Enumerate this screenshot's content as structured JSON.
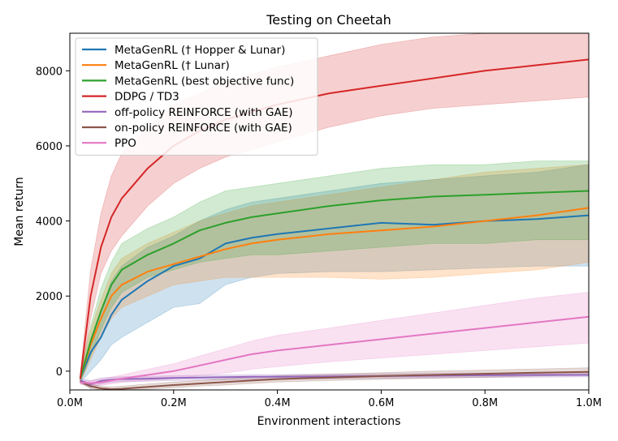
{
  "chart_data": {
    "type": "line",
    "title": "Testing on Cheetah",
    "xlabel": "Environment interactions",
    "ylabel": "Mean return",
    "xlim": [
      0,
      1000000
    ],
    "ylim": [
      -500,
      9000
    ],
    "xticks": [
      0,
      200000,
      400000,
      600000,
      800000,
      1000000
    ],
    "xtick_labels": [
      "0.0M",
      "0.2M",
      "0.4M",
      "0.6M",
      "0.8M",
      "1.0M"
    ],
    "yticks": [
      0,
      2000,
      4000,
      6000,
      8000
    ],
    "ytick_labels": [
      "0",
      "2000",
      "4000",
      "6000",
      "8000"
    ],
    "legend_position": "top-left",
    "x": [
      20000,
      40000,
      60000,
      80000,
      100000,
      150000,
      200000,
      250000,
      300000,
      350000,
      400000,
      500000,
      600000,
      700000,
      800000,
      900000,
      1000000
    ],
    "series": [
      {
        "name": "MetaGenRL († Hopper & Lunar)",
        "color": "#1f77b4",
        "values": [
          -200,
          500,
          900,
          1500,
          1900,
          2400,
          2800,
          3000,
          3400,
          3550,
          3650,
          3800,
          3950,
          3900,
          4000,
          4050,
          4150
        ],
        "lower": [
          -300,
          0,
          300,
          700,
          900,
          1300,
          1700,
          1800,
          2300,
          2500,
          2600,
          2650,
          2650,
          2700,
          2750,
          2800,
          2800
        ],
        "upper": [
          -100,
          800,
          1600,
          2400,
          2800,
          3300,
          3600,
          4000,
          4300,
          4500,
          4600,
          4800,
          5000,
          5100,
          5200,
          5300,
          5500
        ]
      },
      {
        "name": "MetaGenRL († Lunar)",
        "color": "#ff7f0e",
        "values": [
          -200,
          700,
          1400,
          2000,
          2300,
          2650,
          2850,
          3050,
          3250,
          3400,
          3500,
          3650,
          3750,
          3850,
          4000,
          4150,
          4350
        ],
        "lower": [
          -300,
          300,
          900,
          1400,
          1700,
          2000,
          2300,
          2400,
          2500,
          2500,
          2500,
          2500,
          2450,
          2500,
          2600,
          2700,
          2900
        ],
        "upper": [
          -100,
          1100,
          1900,
          2600,
          3000,
          3400,
          3700,
          4000,
          4200,
          4400,
          4500,
          4700,
          4900,
          5100,
          5300,
          5400,
          5500
        ]
      },
      {
        "name": "MetaGenRL (best objective func)",
        "color": "#2ca02c",
        "values": [
          -200,
          800,
          1600,
          2300,
          2700,
          3100,
          3400,
          3750,
          3950,
          4100,
          4200,
          4400,
          4550,
          4650,
          4700,
          4750,
          4800
        ],
        "lower": [
          -300,
          400,
          1100,
          1700,
          2100,
          2500,
          2700,
          2900,
          3000,
          3100,
          3100,
          3200,
          3300,
          3400,
          3400,
          3500,
          3500
        ],
        "upper": [
          -100,
          1200,
          2200,
          2900,
          3400,
          3800,
          4100,
          4500,
          4800,
          4900,
          5000,
          5200,
          5400,
          5500,
          5500,
          5600,
          5600
        ]
      },
      {
        "name": "DDPG / TD3",
        "color": "#d62728",
        "values": [
          -200,
          2000,
          3300,
          4100,
          4600,
          5400,
          6000,
          6400,
          6700,
          6900,
          7100,
          7400,
          7600,
          7800,
          8000,
          8150,
          8300
        ],
        "lower": [
          -300,
          1400,
          2600,
          3200,
          3600,
          4400,
          5000,
          5400,
          5700,
          5900,
          6100,
          6500,
          6800,
          7000,
          7100,
          7200,
          7300
        ],
        "upper": [
          -100,
          2700,
          4200,
          5200,
          5800,
          6500,
          7100,
          7400,
          7700,
          7900,
          8100,
          8400,
          8700,
          8900,
          9000,
          9000,
          9000
        ]
      },
      {
        "name": "off-policy REINFORCE (with GAE)",
        "color": "#9467bd",
        "values": [
          -250,
          -350,
          -260,
          -230,
          -210,
          -200,
          -180,
          -170,
          -160,
          -150,
          -150,
          -140,
          -130,
          -120,
          -110,
          -100,
          -100
        ],
        "lower": [
          -300,
          -450,
          -350,
          -300,
          -280,
          -270,
          -250,
          -240,
          -230,
          -220,
          -210,
          -200,
          -190,
          -180,
          -170,
          -160,
          -150
        ],
        "upper": [
          -200,
          -250,
          -180,
          -160,
          -150,
          -140,
          -120,
          -110,
          -100,
          -90,
          -90,
          -80,
          -70,
          -60,
          -50,
          -40,
          -40
        ]
      },
      {
        "name": "on-policy REINFORCE (with GAE)",
        "color": "#8c564b",
        "values": [
          -280,
          -400,
          -460,
          -480,
          -470,
          -420,
          -370,
          -330,
          -290,
          -250,
          -210,
          -170,
          -130,
          -100,
          -70,
          -40,
          -20
        ],
        "lower": [
          -320,
          -460,
          -500,
          -500,
          -500,
          -480,
          -440,
          -400,
          -370,
          -330,
          -290,
          -250,
          -220,
          -190,
          -160,
          -130,
          -110
        ],
        "upper": [
          -240,
          -340,
          -400,
          -420,
          -400,
          -340,
          -290,
          -250,
          -200,
          -160,
          -120,
          -80,
          -40,
          0,
          30,
          60,
          90
        ]
      },
      {
        "name": "PPO",
        "color": "#e377c2",
        "values": [
          -300,
          -320,
          -300,
          -250,
          -200,
          -100,
          0,
          150,
          300,
          450,
          550,
          700,
          850,
          1000,
          1150,
          1300,
          1450
        ],
        "lower": [
          -350,
          -380,
          -380,
          -340,
          -300,
          -250,
          -200,
          -120,
          -50,
          50,
          120,
          250,
          350,
          450,
          550,
          650,
          750
        ],
        "upper": [
          -250,
          -260,
          -220,
          -160,
          -100,
          50,
          200,
          400,
          600,
          800,
          950,
          1150,
          1350,
          1550,
          1750,
          1950,
          2100
        ]
      }
    ]
  }
}
